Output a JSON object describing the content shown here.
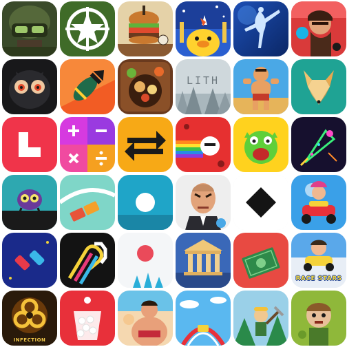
{
  "apps": [
    {
      "id": "soldier-helmet",
      "icon": "soldier-helmet-icon"
    },
    {
      "id": "army-star",
      "icon": "army-star-icon"
    },
    {
      "id": "burger-chef",
      "icon": "burger-icon"
    },
    {
      "id": "night-duck",
      "icon": "duck-icon"
    },
    {
      "id": "ice-dancer",
      "icon": "dancer-icon"
    },
    {
      "id": "brawler",
      "icon": "brawler-icon"
    },
    {
      "id": "owl-eyes",
      "icon": "owl-icon"
    },
    {
      "id": "bomb-drop",
      "icon": "bomb-icon"
    },
    {
      "id": "food-market",
      "icon": "food-bowl-icon"
    },
    {
      "id": "lith",
      "icon": "misty-forest-icon",
      "label": "LITH"
    },
    {
      "id": "strongman",
      "icon": "strongman-icon"
    },
    {
      "id": "low-poly-fox",
      "icon": "fox-icon"
    },
    {
      "id": "l-block",
      "icon": "l-block-icon"
    },
    {
      "id": "math-puzzle",
      "icon": "math-operators-icon"
    },
    {
      "id": "swap-arrows",
      "icon": "swap-arrows-icon"
    },
    {
      "id": "rainbow-runner",
      "icon": "rainbow-runner-icon"
    },
    {
      "id": "green-monster",
      "icon": "monster-icon"
    },
    {
      "id": "neon-rocket",
      "icon": "neon-rocket-icon"
    },
    {
      "id": "purple-creature",
      "icon": "creature-icon"
    },
    {
      "id": "bridge-blocks",
      "icon": "bridge-blocks-icon"
    },
    {
      "id": "white-ball",
      "icon": "ball-icon"
    },
    {
      "id": "angry-man",
      "icon": "angry-man-icon"
    },
    {
      "id": "black-diamond",
      "icon": "diamond-icon"
    },
    {
      "id": "kart-racer",
      "icon": "kart-icon"
    },
    {
      "id": "traffic-cars",
      "icon": "cars-icon"
    },
    {
      "id": "bent-lines",
      "icon": "bent-lines-icon"
    },
    {
      "id": "red-dot-spikes",
      "icon": "dot-spikes-icon"
    },
    {
      "id": "temple",
      "icon": "temple-icon"
    },
    {
      "id": "money-bill",
      "icon": "money-icon"
    },
    {
      "id": "race-stars",
      "icon": "race-car-icon",
      "label": "RACE STARS"
    },
    {
      "id": "infection",
      "icon": "biohazard-icon",
      "label": "INFECTION"
    },
    {
      "id": "ball-cup",
      "icon": "cup-icon"
    },
    {
      "id": "sumo",
      "icon": "sumo-icon"
    },
    {
      "id": "rollercoaster",
      "icon": "coaster-icon"
    },
    {
      "id": "miner",
      "icon": "miner-icon"
    },
    {
      "id": "zombie-kid",
      "icon": "zombie-icon"
    }
  ]
}
